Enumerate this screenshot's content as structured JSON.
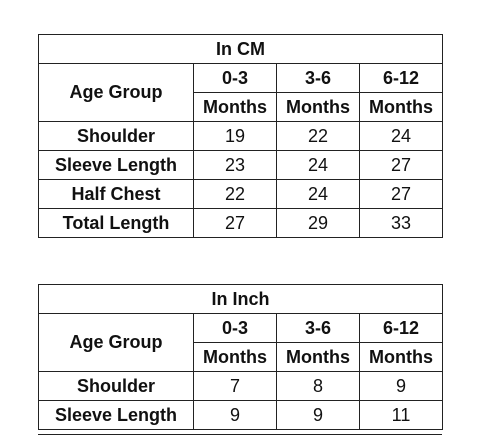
{
  "tables": [
    {
      "title": "In CM",
      "age_group_label": "Age Group",
      "columns": [
        {
          "range": "0-3",
          "unit": "Months"
        },
        {
          "range": "3-6",
          "unit": "Months"
        },
        {
          "range": "6-12",
          "unit": "Months"
        }
      ],
      "rows": [
        {
          "label": "Shoulder",
          "values": [
            "19",
            "22",
            "24"
          ]
        },
        {
          "label": "Sleeve Length",
          "values": [
            "23",
            "24",
            "27"
          ]
        },
        {
          "label": "Half Chest",
          "values": [
            "22",
            "24",
            "27"
          ]
        },
        {
          "label": "Total Length",
          "values": [
            "27",
            "29",
            "33"
          ]
        }
      ]
    },
    {
      "title": "In Inch",
      "age_group_label": "Age Group",
      "columns": [
        {
          "range": "0-3",
          "unit": "Months"
        },
        {
          "range": "3-6",
          "unit": "Months"
        },
        {
          "range": "6-12",
          "unit": "Months"
        }
      ],
      "rows": [
        {
          "label": "Shoulder",
          "values": [
            "7",
            "8",
            "9"
          ]
        },
        {
          "label": "Sleeve Length",
          "values": [
            "9",
            "9",
            "11"
          ]
        }
      ]
    }
  ]
}
